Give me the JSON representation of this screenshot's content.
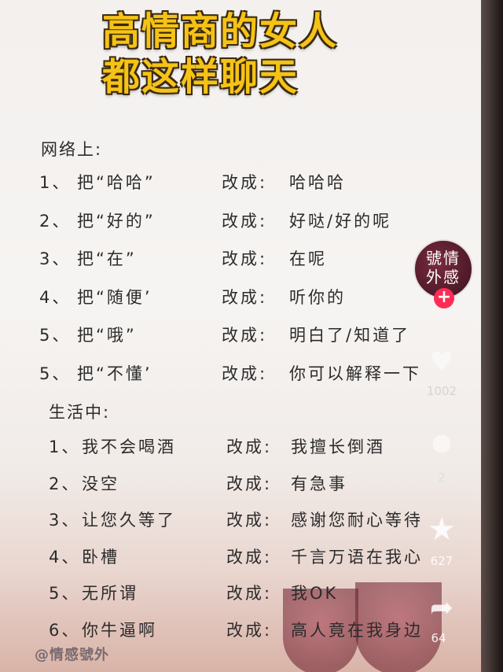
{
  "title": {
    "line1": "高情商的女人",
    "line2": "都这样聊天"
  },
  "sections": {
    "online": {
      "heading": "网络上:",
      "rows": [
        {
          "num": "1、",
          "from": "把“哈哈”",
          "arrow": "改成:",
          "to": "哈哈哈"
        },
        {
          "num": "2、",
          "from": "把“好的”",
          "arrow": "改成:",
          "to": "好哒/好的呢"
        },
        {
          "num": "3、",
          "from": "把“在”",
          "arrow": "改成:",
          "to": "在呢"
        },
        {
          "num": "4、",
          "from": "把“随便’",
          "arrow": "改成:",
          "to": "听你的"
        },
        {
          "num": "5、",
          "from": "把“哦”",
          "arrow": "改成:",
          "to": "明白了/知道了"
        },
        {
          "num": "5、",
          "from": "把“不懂’",
          "arrow": "改成:",
          "to": "你可以解释一下"
        }
      ]
    },
    "life": {
      "heading": "生活中:",
      "rows": [
        {
          "num": "1、",
          "from": "我不会喝酒",
          "arrow": "改成:",
          "to": "我擅长倒酒"
        },
        {
          "num": "2、",
          "from": "没空",
          "arrow": "改成:",
          "to": "有急事"
        },
        {
          "num": "3、",
          "from": "让您久等了",
          "arrow": "改成:",
          "to": "感谢您耐心等待"
        },
        {
          "num": "4、",
          "from": "卧槽",
          "arrow": "改成:",
          "to": "千言万语在我心"
        },
        {
          "num": "5、",
          "from": "无所谓",
          "arrow": "改成:",
          "to": "我OK"
        },
        {
          "num": "6、",
          "from": "你牛逼啊",
          "arrow": "改成:",
          "to": "高人竟在我身边"
        }
      ]
    }
  },
  "sidebar": {
    "avatar_text_line1": "號情",
    "avatar_text_line2": "外感",
    "follow_icon": "plus-icon",
    "like_count": "1002",
    "comment_count": "2",
    "favorite_count": "627",
    "share_count": "64"
  },
  "watermark": "@情感號外",
  "colors": {
    "title_yellow": "#f5c316",
    "follow_red": "#fe2c55",
    "text_dark": "#2b2b2b"
  }
}
